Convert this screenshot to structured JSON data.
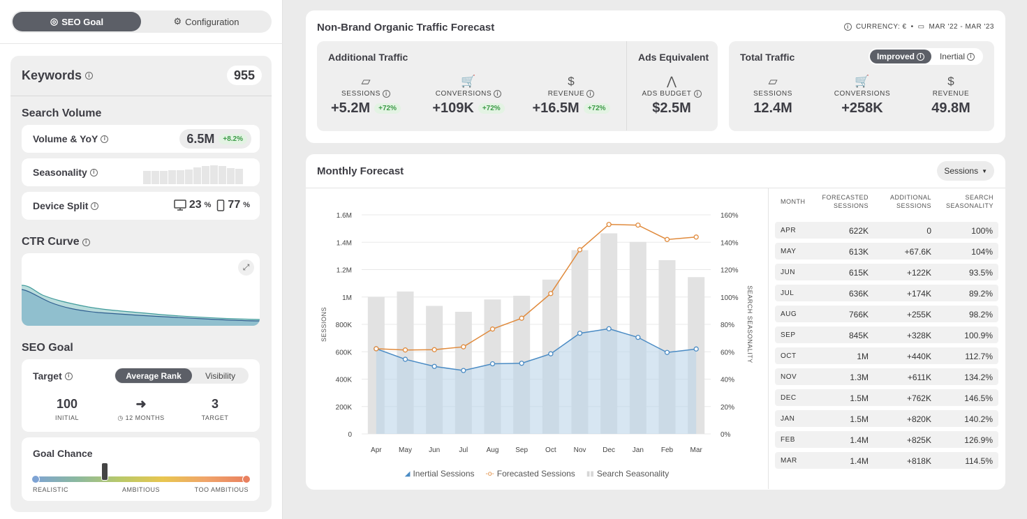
{
  "top_tabs": {
    "seo_goal": "SEO Goal",
    "configuration": "Configuration"
  },
  "keywords": {
    "title": "Keywords",
    "count": "955"
  },
  "search_volume": {
    "title": "Search Volume",
    "volume_label": "Volume & YoY",
    "volume_value": "6.5M",
    "volume_change": "+8.2%",
    "seasonality_label": "Seasonality",
    "seasonality_levels": [
      0.7,
      0.7,
      0.7,
      0.73,
      0.75,
      0.78,
      0.9,
      0.96,
      1.0,
      0.97,
      0.87,
      0.8
    ],
    "device_label": "Device Split",
    "desktop_pct": "23",
    "mobile_pct": "77",
    "pct_symbol": "%"
  },
  "ctr_curve": {
    "title": "CTR Curve"
  },
  "seo_goal": {
    "title": "SEO Goal",
    "target_label": "Target",
    "options": [
      "Average Rank",
      "Visibility"
    ],
    "initial_value": "100",
    "initial_caption": "INITIAL",
    "duration_caption": "12 MONTHS",
    "target_value": "3",
    "target_caption": "TARGET",
    "goal_chance_label": "Goal Chance",
    "scale_labels": [
      "REALISTIC",
      "AMBITIOUS",
      "TOO AMBITIOUS"
    ],
    "goal_chance_level": 0.33
  },
  "forecast_header": {
    "title": "Non-Brand Organic Traffic Forecast",
    "currency": "CURRENCY: €",
    "date_range": "MAR '22 - MAR '23",
    "additional": {
      "title": "Additional Traffic",
      "metrics": [
        {
          "label": "SESSIONS",
          "value": "+5.2M",
          "change": "+72%"
        },
        {
          "label": "CONVERSIONS",
          "value": "+109K",
          "change": "+72%"
        },
        {
          "label": "REVENUE",
          "value": "+16.5M",
          "change": "+72%"
        }
      ]
    },
    "ads": {
      "title": "Ads Equivalent",
      "label": "ADS BUDGET",
      "value": "$2.5M"
    },
    "total": {
      "title": "Total Traffic",
      "toggle": [
        "Improved",
        "Inertial"
      ],
      "metrics": [
        {
          "label": "SESSIONS",
          "value": "12.4M"
        },
        {
          "label": "CONVERSIONS",
          "value": "+258K"
        },
        {
          "label": "REVENUE",
          "value": "49.8M"
        }
      ]
    }
  },
  "monthly": {
    "title": "Monthly Forecast",
    "dropdown": "Sessions",
    "table_headers": [
      "MONTH",
      "FORECASTED SESSIONS",
      "ADDITIONAL SESSIONS",
      "SEARCH SEASONALITY"
    ],
    "rows": [
      [
        "APR",
        "622K",
        "0",
        "100%"
      ],
      [
        "MAY",
        "613K",
        "+67.6K",
        "104%"
      ],
      [
        "JUN",
        "615K",
        "+122K",
        "93.5%"
      ],
      [
        "JUL",
        "636K",
        "+174K",
        "89.2%"
      ],
      [
        "AUG",
        "766K",
        "+255K",
        "98.2%"
      ],
      [
        "SEP",
        "845K",
        "+328K",
        "100.9%"
      ],
      [
        "OCT",
        "1M",
        "+440K",
        "112.7%"
      ],
      [
        "NOV",
        "1.3M",
        "+611K",
        "134.2%"
      ],
      [
        "DEC",
        "1.5M",
        "+762K",
        "146.5%"
      ],
      [
        "JAN",
        "1.5M",
        "+820K",
        "140.2%"
      ],
      [
        "FEB",
        "1.4M",
        "+825K",
        "126.9%"
      ],
      [
        "MAR",
        "1.4M",
        "+818K",
        "114.5%"
      ]
    ]
  },
  "chart_data": {
    "type": "line",
    "categories": [
      "Apr",
      "May",
      "Jun",
      "Jul",
      "Aug",
      "Sep",
      "Oct",
      "Nov",
      "Dec",
      "Jan",
      "Feb",
      "Mar"
    ],
    "ylabel": "SESSIONS",
    "y2label": "SEARCH SEASONALITY",
    "ylim": [
      0,
      1600000
    ],
    "y2lim": [
      0,
      160
    ],
    "yticks": [
      "0",
      "200K",
      "400K",
      "600K",
      "800K",
      "1M",
      "1.2M",
      "1.4M",
      "1.6M"
    ],
    "y2ticks": [
      "0%",
      "20%",
      "40%",
      "60%",
      "80%",
      "100%",
      "120%",
      "140%",
      "160%"
    ],
    "series": [
      {
        "name": "Inertial Sessions",
        "kind": "area",
        "axis": "left",
        "color": "#4a8bc4",
        "values": [
          622000,
          545000,
          493000,
          463000,
          512000,
          516000,
          585000,
          735000,
          768000,
          705000,
          595000,
          620000
        ]
      },
      {
        "name": "Forecasted Sessions",
        "kind": "line",
        "axis": "left",
        "color": "#e08a3c",
        "values": [
          622000,
          613000,
          615000,
          636000,
          766000,
          845000,
          1025000,
          1345000,
          1530000,
          1525000,
          1420000,
          1438000
        ]
      },
      {
        "name": "Search Seasonality",
        "kind": "bar",
        "axis": "right",
        "color": "#e2e2e2",
        "values": [
          100,
          104,
          93.5,
          89.2,
          98.2,
          100.9,
          112.7,
          134.2,
          146.5,
          140.2,
          126.9,
          114.5
        ]
      }
    ],
    "legend": "bottom"
  }
}
